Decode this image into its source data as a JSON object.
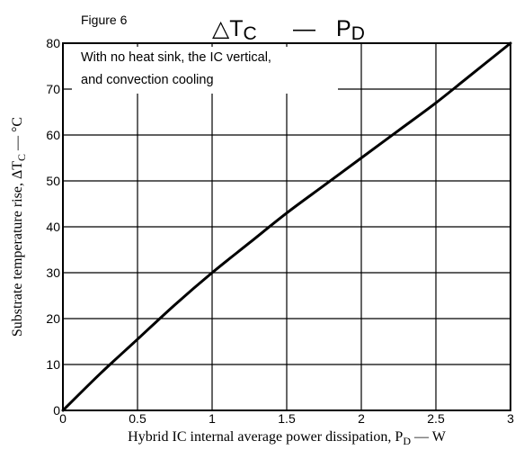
{
  "chart_data": {
    "type": "line",
    "figure_label": "Figure 6",
    "title": {
      "prefix": "△T",
      "prefix_sub": "C",
      "dash": "—",
      "suffix": "P",
      "suffix_sub": "D"
    },
    "annotation": [
      "With no heat sink, the IC vertical,",
      "and convection cooling"
    ],
    "xlabel": {
      "main": "Hybrid IC internal average power dissipation, P",
      "sub": "D",
      "unit": " — W"
    },
    "ylabel": {
      "main": "Substrate temperature rise, ΔT",
      "sub": "C",
      "unit": " — °C"
    },
    "xlim": [
      0,
      3
    ],
    "ylim": [
      0,
      80
    ],
    "x_ticks": [
      {
        "value": 0,
        "label": "0"
      },
      {
        "value": 0.5,
        "label": "0.5"
      },
      {
        "value": 1,
        "label": "1"
      },
      {
        "value": 1.5,
        "label": "1.5"
      },
      {
        "value": 2,
        "label": "2"
      },
      {
        "value": 2.5,
        "label": "2.5"
      },
      {
        "value": 3,
        "label": "3"
      }
    ],
    "y_ticks": [
      {
        "value": 0,
        "label": "0"
      },
      {
        "value": 10,
        "label": "10"
      },
      {
        "value": 20,
        "label": "20"
      },
      {
        "value": 30,
        "label": "30"
      },
      {
        "value": 40,
        "label": "40"
      },
      {
        "value": 50,
        "label": "50"
      },
      {
        "value": 60,
        "label": "60"
      },
      {
        "value": 70,
        "label": "70"
      },
      {
        "value": 80,
        "label": "80"
      }
    ],
    "grid": true,
    "series": [
      {
        "x": [
          0,
          0.25,
          0.5,
          0.75,
          1.0,
          1.25,
          1.5,
          1.75,
          2.0,
          2.25,
          2.5,
          2.75,
          3.0
        ],
        "y": [
          0,
          8,
          15.5,
          23,
          30,
          36.5,
          43,
          49,
          55,
          61,
          67,
          73.5,
          80
        ]
      }
    ]
  }
}
